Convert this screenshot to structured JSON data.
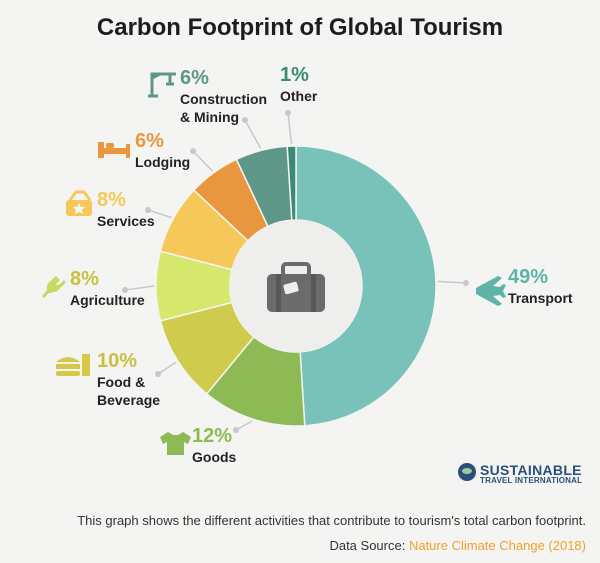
{
  "chart_data": {
    "type": "pie",
    "title": "Carbon Footprint of Global Tourism",
    "slices": [
      {
        "label": "Transport",
        "value": 49,
        "value_label": "49%",
        "color": "#78c2b9",
        "icon": "airplane-icon"
      },
      {
        "label": "Goods",
        "value": 12,
        "value_label": "12%",
        "color": "#8dba55",
        "icon": "tshirt-icon"
      },
      {
        "label": "Food & Beverage",
        "value": 10,
        "value_label": "10%",
        "color": "#cfcc4d",
        "icon": "burger-drink-icon"
      },
      {
        "label": "Agriculture",
        "value": 8,
        "value_label": "8%",
        "color": "#d6e86d",
        "icon": "wheat-icon"
      },
      {
        "label": "Services",
        "value": 8,
        "value_label": "8%",
        "color": "#f6c85a",
        "icon": "service-ticket-icon"
      },
      {
        "label": "Lodging",
        "value": 6,
        "value_label": "6%",
        "color": "#e9973f",
        "icon": "bed-icon"
      },
      {
        "label": "Construction & Mining",
        "value": 6,
        "value_label": "6%",
        "color": "#5e9787",
        "icon": "crane-icon"
      },
      {
        "label": "Other",
        "value": 1,
        "value_label": "1%",
        "color": "#3b8a74",
        "icon": ""
      }
    ],
    "center_icon": "suitcase-icon"
  },
  "logo": {
    "main": "SUSTAINABLE",
    "sub": "TRAVEL INTERNATIONAL"
  },
  "description": "This graph shows the different activities that contribute to tourism's total carbon footprint.",
  "source": {
    "prefix": "Data Source: ",
    "name": "Nature Climate Change (2018)"
  }
}
